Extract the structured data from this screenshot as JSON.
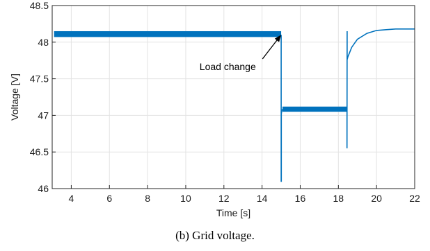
{
  "chart_data": {
    "type": "line",
    "xlabel": "Time [s]",
    "ylabel": "Voltage [V]",
    "xlim": [
      3,
      22
    ],
    "ylim": [
      46,
      48.5
    ],
    "xticks": [
      4,
      6,
      8,
      10,
      12,
      14,
      16,
      18,
      20,
      22
    ],
    "yticks": [
      46,
      46.5,
      47,
      47.5,
      48,
      48.5
    ],
    "grid": true,
    "color": "#0072BD",
    "band_segments": [
      {
        "x_start": 3.1,
        "x_end": 15.0,
        "y_low": 48.07,
        "y_high": 48.15
      },
      {
        "x_start": 15.07,
        "x_end": 18.45,
        "y_low": 47.05,
        "y_high": 47.12
      }
    ],
    "series": [
      {
        "x": [
          15.0,
          15.0,
          15.01,
          15.01,
          15.04,
          15.07,
          18.45,
          18.45,
          18.46,
          18.46,
          18.5,
          18.7,
          19.0,
          19.5,
          20.0,
          20.5,
          21.0,
          22.0
        ],
        "y": [
          48.1,
          46.1,
          46.1,
          47.02,
          47.07,
          47.08,
          47.08,
          46.55,
          48.15,
          47.76,
          47.8,
          47.93,
          48.04,
          48.12,
          48.16,
          48.17,
          48.18,
          48.18
        ]
      }
    ],
    "annotations": [
      {
        "text": "Load change",
        "arrow_to": [
          15.0,
          48.1
        ]
      }
    ]
  },
  "caption": "(b) Grid voltage."
}
